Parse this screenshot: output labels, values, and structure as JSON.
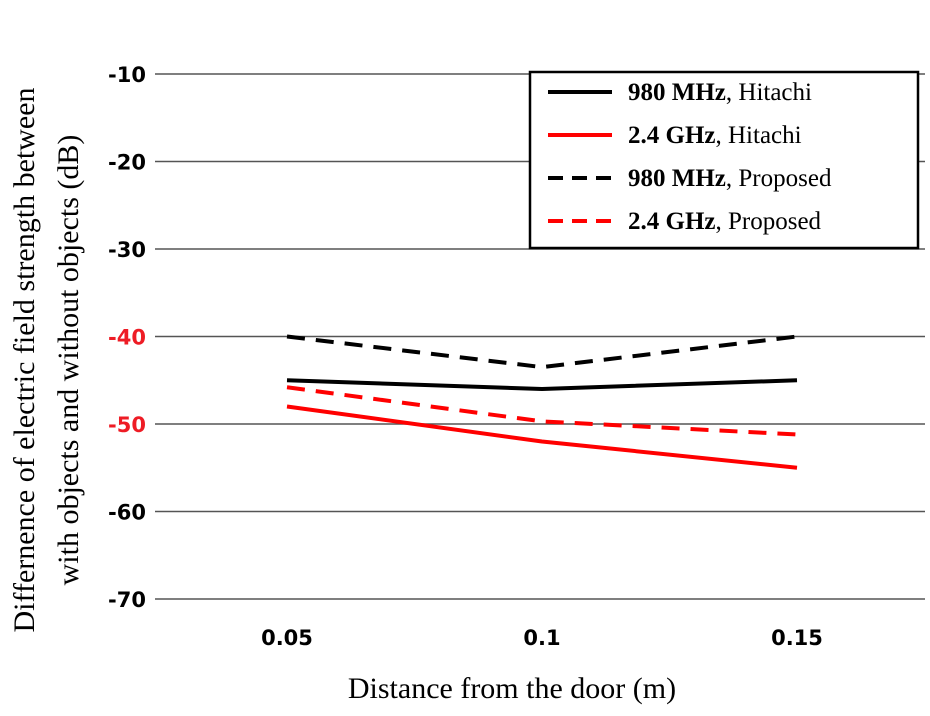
{
  "chart_data": {
    "type": "line",
    "title": "",
    "xlabel": "Distance from the door (m)",
    "ylabel_lines": [
      "Differnence of electric field strength between",
      "with objects and without objects (dB)"
    ],
    "x": [
      0.05,
      0.1,
      0.15
    ],
    "x_ticks": [
      "0.05",
      "0.1",
      "0.15"
    ],
    "y_ticks": [
      -10,
      -20,
      -30,
      -40,
      -50,
      -60,
      -70
    ],
    "y_tick_labels": [
      "-10",
      "-20",
      "-30",
      "-40",
      "-50",
      "-60",
      "-70"
    ],
    "highlighted_y_ticks": [
      "-40",
      "-50"
    ],
    "ylim": [
      -70,
      -10
    ],
    "grid": "horizontal",
    "legend_position": "top-right",
    "series": [
      {
        "name_bold": "980 MHz",
        "name_rest": ", Hitachi",
        "color": "#000000",
        "dashed": false,
        "values": [
          -45,
          -46,
          -45
        ]
      },
      {
        "name_bold": "2.4 GHz",
        "name_rest": ", Hitachi",
        "color": "#ff0000",
        "dashed": false,
        "values": [
          -48,
          -52,
          -55
        ]
      },
      {
        "name_bold": "980 MHz",
        "name_rest": ", Proposed",
        "color": "#000000",
        "dashed": true,
        "values": [
          -40,
          -43.5,
          -40
        ]
      },
      {
        "name_bold": "2.4 GHz",
        "name_rest": ", Proposed",
        "color": "#ff0000",
        "dashed": true,
        "values": [
          -45.8,
          -49.7,
          -51.2
        ]
      }
    ],
    "colors": {
      "grid": "#555555",
      "tick_text": "#000000",
      "highlight_tick_text": "#ee1c25"
    }
  }
}
